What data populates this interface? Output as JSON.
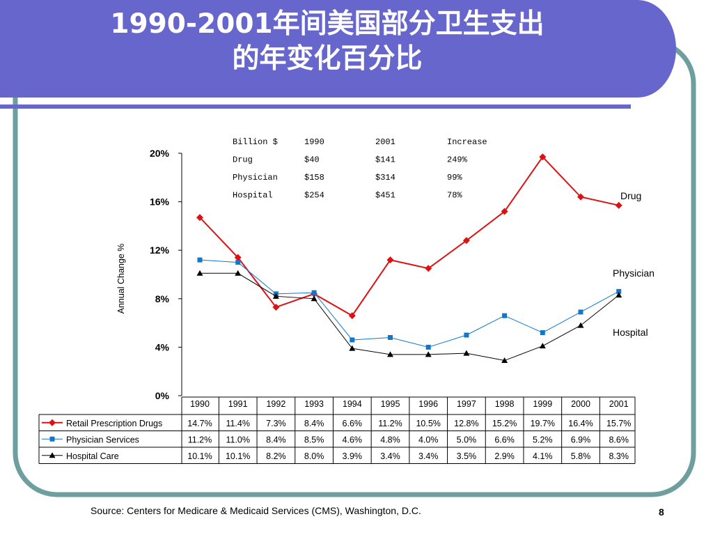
{
  "slide": {
    "title_line1": "1990-2001年间美国部分卫生支出",
    "title_line2": "的年变化百分比",
    "source": "Source:  Centers for Medicare & Medicaid Services (CMS), Washington, D.C.",
    "page_number": "8"
  },
  "colors": {
    "banner": "#6666cc",
    "frame": "#6e9e9e",
    "drug": "#dd1111",
    "physician": "#1177cc",
    "hospital": "#000000"
  },
  "chart_data": {
    "type": "line",
    "ylabel": "Annual Change %",
    "ylim": [
      0,
      20
    ],
    "yticks": [
      "0%",
      "4%",
      "8%",
      "12%",
      "16%",
      "20%"
    ],
    "categories": [
      "1990",
      "1991",
      "1992",
      "1993",
      "1994",
      "1995",
      "1996",
      "1997",
      "1998",
      "1999",
      "2000",
      "2001"
    ],
    "series": [
      {
        "name": "Retail Prescription Drugs",
        "end_label": "Drug",
        "marker": "diamond",
        "values": [
          14.7,
          11.4,
          7.3,
          8.4,
          6.6,
          11.2,
          10.5,
          12.8,
          15.2,
          19.7,
          16.4,
          15.7
        ],
        "labels": [
          "14.7%",
          "11.4%",
          "7.3%",
          "8.4%",
          "6.6%",
          "11.2%",
          "10.5%",
          "12.8%",
          "15.2%",
          "19.7%",
          "16.4%",
          "15.7%"
        ]
      },
      {
        "name": "Physician Services",
        "end_label": "Physician",
        "marker": "square",
        "values": [
          11.2,
          11.0,
          8.4,
          8.5,
          4.6,
          4.8,
          4.0,
          5.0,
          6.6,
          5.2,
          6.9,
          8.6
        ],
        "labels": [
          "11.2%",
          "11.0%",
          "8.4%",
          "8.5%",
          "4.6%",
          "4.8%",
          "4.0%",
          "5.0%",
          "6.6%",
          "5.2%",
          "6.9%",
          "8.6%"
        ]
      },
      {
        "name": "Hospital Care",
        "end_label": "Hospital",
        "marker": "triangle",
        "values": [
          10.1,
          10.1,
          8.2,
          8.0,
          3.9,
          3.4,
          3.4,
          3.5,
          2.9,
          4.1,
          5.8,
          8.3
        ],
        "labels": [
          "10.1%",
          "10.1%",
          "8.2%",
          "8.0%",
          "3.9%",
          "3.4%",
          "3.4%",
          "3.5%",
          "2.9%",
          "4.1%",
          "5.8%",
          "8.3%"
        ]
      }
    ],
    "inset_table": [
      [
        "Billion $",
        "1990",
        "2001",
        "Increase"
      ],
      [
        "Drug",
        "$40",
        "$141",
        "249%"
      ],
      [
        "Physician",
        "$158",
        "$314",
        "99%"
      ],
      [
        "Hospital",
        "$254",
        "$451",
        "78%"
      ]
    ]
  }
}
